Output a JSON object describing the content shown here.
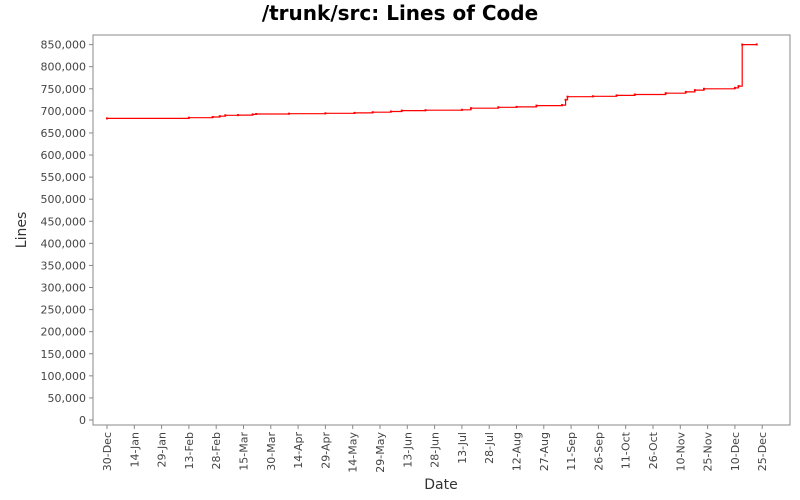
{
  "chart_data": {
    "type": "line",
    "title": "/trunk/src: Lines of Code",
    "xlabel": "Date",
    "ylabel": "Lines",
    "x_ticks": [
      "30-Dec",
      "14-Jan",
      "29-Jan",
      "13-Feb",
      "28-Feb",
      "15-Mar",
      "30-Mar",
      "14-Apr",
      "29-Apr",
      "14-May",
      "29-May",
      "13-Jun",
      "28-Jun",
      "13-Jul",
      "28-Jul",
      "12-Aug",
      "27-Aug",
      "11-Sep",
      "26-Sep",
      "11-Oct",
      "26-Oct",
      "10-Nov",
      "25-Nov",
      "10-Dec",
      "25-Dec"
    ],
    "y_ticks": [
      "0",
      "50,000",
      "100,000",
      "150,000",
      "200,000",
      "250,000",
      "300,000",
      "350,000",
      "400,000",
      "450,000",
      "500,000",
      "550,000",
      "600,000",
      "650,000",
      "700,000",
      "750,000",
      "800,000",
      "850,000"
    ],
    "ylim": [
      0,
      865000
    ],
    "xlim_days": [
      -3,
      362
    ],
    "grid": false,
    "legend": "none",
    "series": [
      {
        "color": "#ff0000",
        "step": true,
        "points": [
          {
            "day": 0,
            "y": 683000
          },
          {
            "day": 45,
            "y": 684500
          },
          {
            "day": 58,
            "y": 686000
          },
          {
            "day": 62,
            "y": 688000
          },
          {
            "day": 65,
            "y": 690000
          },
          {
            "day": 72,
            "y": 690500
          },
          {
            "day": 80,
            "y": 692000
          },
          {
            "day": 82,
            "y": 693000
          },
          {
            "day": 100,
            "y": 693500
          },
          {
            "day": 120,
            "y": 694500
          },
          {
            "day": 136,
            "y": 695500
          },
          {
            "day": 146,
            "y": 697000
          },
          {
            "day": 156,
            "y": 698500
          },
          {
            "day": 162,
            "y": 700500
          },
          {
            "day": 175,
            "y": 701500
          },
          {
            "day": 195,
            "y": 702500
          },
          {
            "day": 200,
            "y": 706000
          },
          {
            "day": 215,
            "y": 708000
          },
          {
            "day": 225,
            "y": 709000
          },
          {
            "day": 236,
            "y": 712000
          },
          {
            "day": 250,
            "y": 713000
          },
          {
            "day": 252,
            "y": 725000
          },
          {
            "day": 253,
            "y": 732000
          },
          {
            "day": 267,
            "y": 733000
          },
          {
            "day": 280,
            "y": 735000
          },
          {
            "day": 290,
            "y": 737000
          },
          {
            "day": 307,
            "y": 740000
          },
          {
            "day": 318,
            "y": 743000
          },
          {
            "day": 323,
            "y": 747000
          },
          {
            "day": 328,
            "y": 750000
          },
          {
            "day": 345,
            "y": 752000
          },
          {
            "day": 347,
            "y": 756000
          },
          {
            "day": 349,
            "y": 850000
          },
          {
            "day": 357,
            "y": 850500
          }
        ]
      }
    ]
  }
}
